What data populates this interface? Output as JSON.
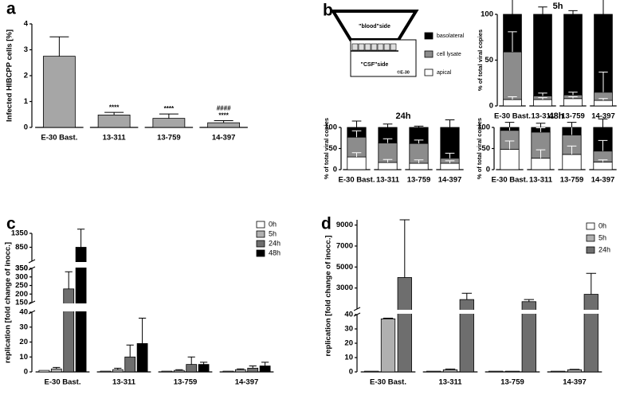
{
  "diagram": {
    "blood_side": "\"blood\"side",
    "csf_side": "\"CSF\"side",
    "credit": "©E-30"
  },
  "chart_data": [
    {
      "type": "bar",
      "panel_label": "a",
      "y_label": "Infected HIBCPP cells [%]",
      "categories": [
        "E-30 Bast.",
        "13-311",
        "13-759",
        "14-397"
      ],
      "values": [
        2.75,
        0.48,
        0.35,
        0.18
      ],
      "errors": [
        0.75,
        0.1,
        0.17,
        0.08
      ],
      "annotations": [
        null,
        [
          "****"
        ],
        [
          "****"
        ],
        [
          "****",
          "####"
        ]
      ],
      "color": "#a6a6a6",
      "ylim": [
        0,
        4
      ],
      "yticks": [
        0,
        1,
        2,
        3,
        4
      ]
    },
    {
      "type": "stacked_bar",
      "panel_label": "b",
      "title": "5h",
      "y_label": "% of total viral copies",
      "legend": true,
      "categories": [
        "E-30 Bast.",
        "13-311",
        "13-759",
        "14-397"
      ],
      "series": [
        {
          "name": "apical",
          "color": "#ffffff",
          "values": [
            7,
            7,
            8,
            6
          ],
          "errors": [
            3,
            2,
            2,
            2
          ]
        },
        {
          "name": "cell lysate",
          "color": "#8c8c8c",
          "values": [
            52,
            4,
            4,
            9
          ],
          "errors": [
            22,
            3,
            3,
            22
          ]
        },
        {
          "name": "basolateral",
          "color": "#000000",
          "values": [
            41,
            89,
            88,
            85
          ],
          "errors": [
            20,
            8,
            4,
            18
          ]
        }
      ],
      "ylim": [
        0,
        100
      ],
      "yticks": [
        0,
        50,
        100
      ]
    },
    {
      "type": "stacked_bar",
      "title": "24h",
      "y_label": "% of total viral copies",
      "categories": [
        "E-30 Bast.",
        "13-311",
        "13-759",
        "14-397"
      ],
      "series": [
        {
          "color": "#ffffff",
          "values": [
            30,
            17,
            15,
            15
          ],
          "errors": [
            10,
            7,
            8,
            6
          ]
        },
        {
          "color": "#8c8c8c",
          "values": [
            47,
            46,
            47,
            12
          ],
          "errors": [
            15,
            10,
            8,
            12
          ]
        },
        {
          "color": "#000000",
          "values": [
            23,
            37,
            38,
            73
          ],
          "errors": [
            15,
            8,
            3,
            18
          ]
        }
      ],
      "ylim": [
        0,
        100
      ],
      "yticks": [
        0,
        50,
        100
      ]
    },
    {
      "type": "stacked_bar",
      "title": "48h",
      "y_label": "% of total viral copies",
      "categories": [
        "E-30 Bast.",
        "13-311",
        "13-759",
        "14-397"
      ],
      "series": [
        {
          "color": "#ffffff",
          "values": [
            48,
            27,
            36,
            18
          ],
          "errors": [
            20,
            20,
            20,
            5
          ]
        },
        {
          "color": "#8c8c8c",
          "values": [
            45,
            62,
            46,
            26
          ],
          "errors": [
            10,
            10,
            28,
            25
          ]
        },
        {
          "color": "#000000",
          "values": [
            7,
            11,
            18,
            56
          ],
          "errors": [
            12,
            10,
            12,
            20
          ]
        }
      ],
      "ylim": [
        0,
        100
      ],
      "yticks": [
        0,
        50,
        100
      ]
    },
    {
      "type": "grouped_bar",
      "panel_label": "c",
      "y_label": "replication [fold change of inocc.]",
      "legend": true,
      "categories": [
        "E-30 Bast.",
        "13-311",
        "13-759",
        "14-397"
      ],
      "series": [
        {
          "name": "0h",
          "color": "#ffffff",
          "values": [
            1,
            0.5,
            0.5,
            0.5
          ],
          "errors": [
            null,
            null,
            null,
            null
          ]
        },
        {
          "name": "5h",
          "color": "#b0b0b0",
          "values": [
            2,
            1.5,
            1,
            1.5
          ],
          "errors": [
            1,
            1,
            0.5,
            0.5
          ]
        },
        {
          "name": "24h",
          "color": "#6e6e6e",
          "values": [
            230,
            10,
            5,
            2.5
          ],
          "errors": [
            100,
            8,
            5,
            1.5
          ]
        },
        {
          "name": "48h",
          "color": "#000000",
          "values": [
            850,
            19,
            5,
            4
          ],
          "errors": [
            650,
            17,
            1.5,
            2.5
          ]
        }
      ],
      "y_segments": [
        {
          "ylim": [
            0,
            40
          ],
          "yticks": [
            0,
            10,
            20,
            30,
            40
          ]
        },
        {
          "ylim": [
            150,
            350
          ],
          "yticks": [
            150,
            200,
            250,
            300,
            350
          ]
        },
        {
          "ylim": [
            350,
            1350
          ],
          "yticks": [
            350,
            850,
            1350
          ]
        }
      ]
    },
    {
      "type": "grouped_bar",
      "panel_label": "d",
      "y_label": "replication [fold change of inocc.]",
      "legend": true,
      "categories": [
        "E-30 Bast.",
        "13-311",
        "13-759",
        "14-397"
      ],
      "series": [
        {
          "name": "0h",
          "color": "#ffffff",
          "values": [
            0.5,
            0.5,
            0.5,
            0.5
          ],
          "errors": [
            null,
            null,
            null,
            null
          ]
        },
        {
          "name": "5h",
          "color": "#b0b0b0",
          "values": [
            37,
            1.5,
            0.5,
            1.5
          ],
          "errors": [
            0.5,
            0.5,
            null,
            0.3
          ]
        },
        {
          "name": "24h",
          "color": "#6e6e6e",
          "values": [
            4000,
            1900,
            1700,
            2400
          ],
          "errors": [
            5500,
            600,
            200,
            2000
          ]
        }
      ],
      "y_segments": [
        {
          "ylim": [
            0,
            40
          ],
          "yticks": [
            0,
            10,
            20,
            30,
            40
          ]
        },
        {
          "ylim": [
            1000,
            9500
          ],
          "yticks": [
            3000,
            5000,
            7000,
            9000
          ]
        }
      ]
    }
  ]
}
